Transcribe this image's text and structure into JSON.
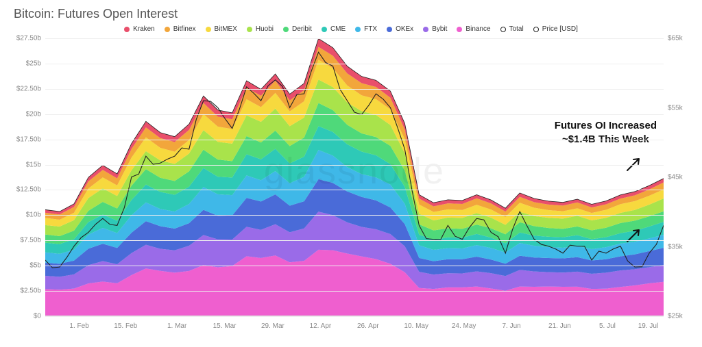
{
  "title": "Bitcoin: Futures Open Interest",
  "watermark": "glassnode",
  "legend": [
    {
      "label": "Kraken",
      "color": "#e94f6b"
    },
    {
      "label": "Bitfinex",
      "color": "#f2a63b"
    },
    {
      "label": "BitMEX",
      "color": "#f7d93e"
    },
    {
      "label": "Huobi",
      "color": "#a9e34b"
    },
    {
      "label": "Deribit",
      "color": "#4fd97a"
    },
    {
      "label": "CME",
      "color": "#2ec9b7"
    },
    {
      "label": "FTX",
      "color": "#3fb8e8"
    },
    {
      "label": "OKEx",
      "color": "#4a6bd8"
    },
    {
      "label": "Bybit",
      "color": "#9a6be8"
    },
    {
      "label": "Binance",
      "color": "#ef5fcf"
    },
    {
      "label": "Total",
      "color": "#222222"
    },
    {
      "label": "Price [USD]",
      "color": "#222222"
    }
  ],
  "annotation": {
    "line1": "Futures OI Increased",
    "line2": "~$1.4B This Week"
  },
  "chart": {
    "type": "stacked-area",
    "background_color": "#ffffff",
    "grid_color": "#eeeeee",
    "font_color": "#888888",
    "left_axis": {
      "min": 0,
      "max": 27.5,
      "unit": "$b",
      "ticks": [
        {
          "v": 0,
          "label": "$0"
        },
        {
          "v": 2.5,
          "label": "$2.50b"
        },
        {
          "v": 5,
          "label": "$5b"
        },
        {
          "v": 7.5,
          "label": "$7.50b"
        },
        {
          "v": 10,
          "label": "$10b"
        },
        {
          "v": 12.5,
          "label": "$12.50b"
        },
        {
          "v": 15,
          "label": "$15b"
        },
        {
          "v": 17.5,
          "label": "$17.50b"
        },
        {
          "v": 20,
          "label": "$20b"
        },
        {
          "v": 22.5,
          "label": "$22.50b"
        },
        {
          "v": 25,
          "label": "$25b"
        },
        {
          "v": 27.5,
          "label": "$27.50b"
        }
      ]
    },
    "right_axis": {
      "min": 25,
      "max": 65,
      "unit": "$k",
      "ticks": [
        {
          "v": 25,
          "label": "$25k"
        },
        {
          "v": 35,
          "label": "$35k"
        },
        {
          "v": 45,
          "label": "$45k"
        },
        {
          "v": 55,
          "label": "$55k"
        },
        {
          "v": 65,
          "label": "$65k"
        }
      ]
    },
    "x_axis": {
      "labels": [
        "1. Feb",
        "15. Feb",
        "1. Mar",
        "15. Mar",
        "29. Mar",
        "12. Apr",
        "26. Apr",
        "10. May",
        "24. May",
        "7. Jun",
        "21. Jun",
        "5. Jul",
        "19. Jul"
      ],
      "positions": [
        0.055,
        0.13,
        0.213,
        0.29,
        0.368,
        0.445,
        0.522,
        0.6,
        0.677,
        0.754,
        0.832,
        0.909,
        0.975
      ]
    },
    "n": 44,
    "totals": [
      10.2,
      10.0,
      10.8,
      13.5,
      14.8,
      14.0,
      17.0,
      19.2,
      18.2,
      18.0,
      19.5,
      22.5,
      21.0,
      20.5,
      23.5,
      22.5,
      24.0,
      22.0,
      23.0,
      27.2,
      26.0,
      24.0,
      23.0,
      22.8,
      22.0,
      19.0,
      12.0,
      11.2,
      11.5,
      11.5,
      12.2,
      11.8,
      11.0,
      12.5,
      11.8,
      11.4,
      11.2,
      11.5,
      11.0,
      11.3,
      11.8,
      12.0,
      12.5,
      13.2
    ],
    "shares": {
      "Binance": 0.24,
      "Bybit": 0.13,
      "OKEx": 0.12,
      "FTX": 0.1,
      "CME": 0.09,
      "Deribit": 0.08,
      "Huobi": 0.09,
      "BitMEX": 0.07,
      "Bitfinex": 0.05,
      "Kraken": 0.03
    },
    "stack_order": [
      "Binance",
      "Bybit",
      "OKEx",
      "FTX",
      "CME",
      "Deribit",
      "Huobi",
      "BitMEX",
      "Bitfinex",
      "Kraken"
    ],
    "series_colors": {
      "Binance": "#ef5fcf",
      "Bybit": "#9a6be8",
      "OKEx": "#4a6bd8",
      "FTX": "#3fb8e8",
      "CME": "#2ec9b7",
      "Deribit": "#4fd97a",
      "Huobi": "#a9e34b",
      "BitMEX": "#f7d93e",
      "Bitfinex": "#f2a63b",
      "Kraken": "#e94f6b"
    },
    "price_usd": [
      33,
      32,
      35,
      37,
      39,
      38,
      45,
      48,
      47,
      48,
      49,
      56,
      55,
      52,
      58,
      56,
      59,
      55,
      57,
      63,
      61,
      56,
      54,
      57,
      55,
      49,
      38,
      36,
      38,
      36,
      39,
      37,
      34,
      40,
      36,
      35,
      34,
      35,
      33,
      34,
      35,
      32,
      34,
      38
    ],
    "price_line_color": "#222222",
    "price_line_width": 1.1
  }
}
